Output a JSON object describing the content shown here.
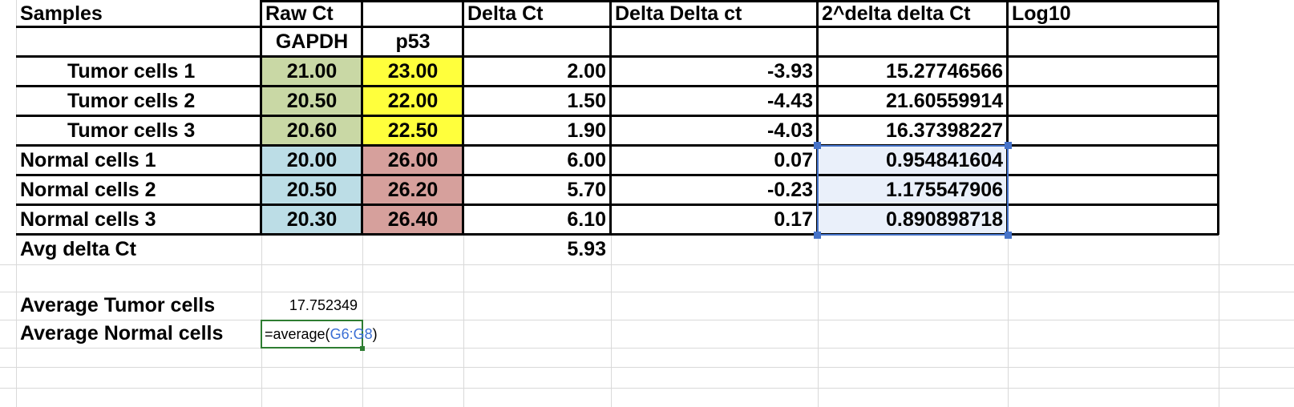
{
  "sheet": {
    "headers": {
      "samples": "Samples",
      "raw_ct": "Raw Ct",
      "blank": "",
      "delta_ct": "Delta Ct",
      "delta_delta_ct": "Delta Delta ct",
      "two_pow": "2^delta delta Ct",
      "log10": "Log10"
    },
    "subheaders": {
      "gapdh": "GAPDH",
      "p53": "p53"
    },
    "rows": [
      {
        "sample": "Tumor cells 1",
        "gapdh": "21.00",
        "p53": "23.00",
        "delta_ct": "2.00",
        "ddct": "-3.93",
        "pow": "15.27746566",
        "log10": ""
      },
      {
        "sample": "Tumor cells 2",
        "gapdh": "20.50",
        "p53": "22.00",
        "delta_ct": "1.50",
        "ddct": "-4.43",
        "pow": "21.60559914",
        "log10": ""
      },
      {
        "sample": "Tumor cells 3",
        "gapdh": "20.60",
        "p53": "22.50",
        "delta_ct": "1.90",
        "ddct": "-4.03",
        "pow": "16.37398227",
        "log10": ""
      },
      {
        "sample": "Normal cells 1",
        "gapdh": "20.00",
        "p53": "26.00",
        "delta_ct": "6.00",
        "ddct": "0.07",
        "pow": "0.954841604",
        "log10": ""
      },
      {
        "sample": "Normal cells 2",
        "gapdh": "20.50",
        "p53": "26.20",
        "delta_ct": "5.70",
        "ddct": "-0.23",
        "pow": "1.175547906",
        "log10": ""
      },
      {
        "sample": "Normal cells 3",
        "gapdh": "20.30",
        "p53": "26.40",
        "delta_ct": "6.10",
        "ddct": "0.17",
        "pow": "0.890898718",
        "log10": ""
      }
    ],
    "avg_delta_ct": {
      "label": "Avg delta Ct",
      "value": "5.93"
    },
    "avg_tumor": {
      "label": "Average Tumor cells",
      "value": "17.752349"
    },
    "avg_normal": {
      "label": "Average Normal cells",
      "formula_prefix": "=average(",
      "formula_ref": "G6:G8",
      "formula_suffix": ")"
    },
    "colors": {
      "gapdh_tumor": "#c9d8a5",
      "p53_tumor": "#ffff3c",
      "gapdh_normal": "#bcdde6",
      "p53_normal": "#d6a09c",
      "selection": "#4673c9",
      "editor_border": "#2e7d32",
      "reference": "#3b6fd4"
    }
  }
}
